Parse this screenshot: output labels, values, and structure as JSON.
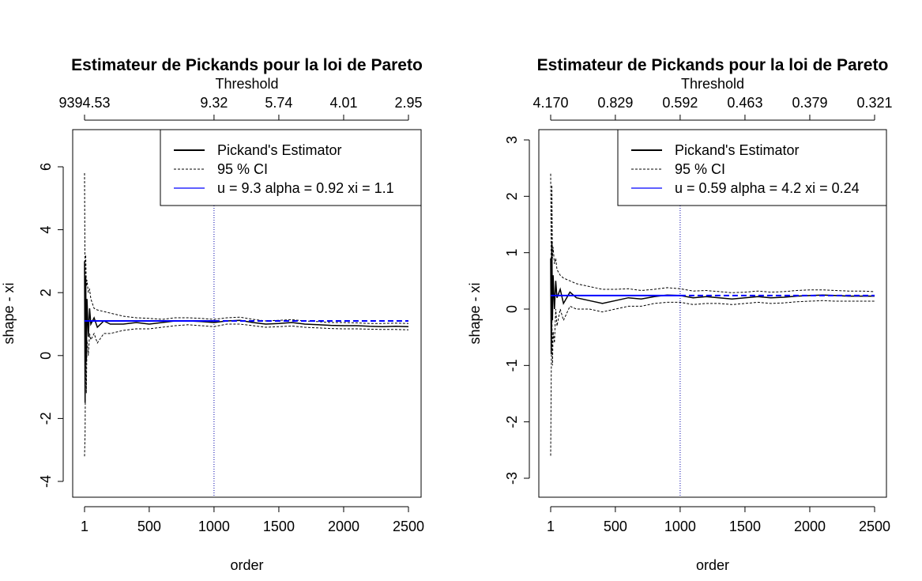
{
  "chart_data": [
    {
      "type": "line",
      "title": "Estimateur de Pickands pour la loi de Pareto",
      "xlabel": "order",
      "ylabel": "shape - xi",
      "top_axis_label": "Threshold",
      "xlim": [
        1,
        2500
      ],
      "ylim": [
        -4,
        7
      ],
      "x_ticks": [
        1,
        500,
        1000,
        1500,
        2000,
        2500
      ],
      "x_tick_labels": [
        "1",
        "500",
        "1000",
        "1500",
        "2000",
        "2500"
      ],
      "y_ticks": [
        -4,
        -2,
        0,
        2,
        4,
        6
      ],
      "y_tick_labels": [
        "-4",
        "-2",
        "0",
        "2",
        "4",
        "6"
      ],
      "top_ticks": [
        1,
        1000,
        1500,
        2000,
        2500
      ],
      "top_tick_labels": [
        "9394.53",
        "9.32",
        "5.74",
        "4.01",
        "2.95"
      ],
      "vline_x": 1000,
      "hline_y": 1.1,
      "legend": {
        "position": "top-right",
        "entries": [
          {
            "label": "Pickand's Estimator",
            "style": "solid",
            "color": "#000000"
          },
          {
            "label": "95 % CI",
            "style": "dashed",
            "color": "#000000"
          },
          {
            "label": "u = 9.3 alpha = 0.92 xi = 1.1",
            "style": "solid",
            "color": "#0000ff"
          }
        ]
      },
      "series": [
        {
          "name": "Pickand's Estimator",
          "x": [
            1,
            5,
            10,
            15,
            20,
            30,
            40,
            50,
            75,
            100,
            150,
            200,
            300,
            400,
            500,
            600,
            700,
            800,
            900,
            1000,
            1100,
            1200,
            1300,
            1400,
            1500,
            1600,
            1700,
            1800,
            1900,
            2000,
            2100,
            2200,
            2300,
            2400,
            2500
          ],
          "y": [
            3.0,
            -1.5,
            2.5,
            -0.2,
            1.8,
            0.6,
            1.5,
            1.0,
            1.2,
            0.9,
            1.1,
            1.0,
            1.0,
            1.05,
            1.0,
            1.05,
            1.1,
            1.1,
            1.08,
            1.05,
            1.1,
            1.12,
            1.05,
            1.0,
            1.02,
            1.05,
            1.0,
            0.98,
            0.96,
            0.95,
            0.95,
            0.93,
            0.92,
            0.93,
            0.92
          ]
        },
        {
          "name": "95 % CI",
          "x": [
            1,
            5,
            10,
            15,
            20,
            30,
            40,
            50,
            75,
            100,
            150,
            200,
            300,
            400,
            500,
            600,
            700,
            800,
            900,
            1000,
            1100,
            1200,
            1300,
            1400,
            1500,
            1600,
            1700,
            1800,
            1900,
            2000,
            2100,
            2200,
            2300,
            2400,
            2500
          ],
          "y": [
            5.8,
            2.0,
            3.2,
            2.2,
            2.4,
            2.0,
            2.1,
            1.8,
            1.5,
            1.45,
            1.4,
            1.35,
            1.25,
            1.2,
            1.18,
            1.15,
            1.2,
            1.2,
            1.18,
            1.15,
            1.2,
            1.22,
            1.15,
            1.1,
            1.12,
            1.14,
            1.1,
            1.08,
            1.05,
            1.05,
            1.04,
            1.02,
            1.02,
            1.03,
            1.02
          ]
        },
        {
          "name": "",
          "x": [
            1,
            5,
            10,
            15,
            20,
            30,
            40,
            50,
            75,
            100,
            150,
            200,
            300,
            400,
            500,
            600,
            700,
            800,
            900,
            1000,
            1100,
            1200,
            1300,
            1400,
            1500,
            1600,
            1700,
            1800,
            1900,
            2000,
            2100,
            2200,
            2300,
            2400,
            2500
          ],
          "y": [
            -3.2,
            -2.5,
            1.0,
            -1.2,
            0.5,
            0.0,
            0.7,
            0.5,
            0.7,
            0.4,
            0.7,
            0.7,
            0.8,
            0.85,
            0.85,
            0.9,
            0.95,
            0.98,
            0.95,
            0.92,
            1.0,
            1.0,
            0.95,
            0.9,
            0.92,
            0.94,
            0.9,
            0.88,
            0.86,
            0.85,
            0.85,
            0.84,
            0.83,
            0.83,
            0.82
          ]
        }
      ]
    },
    {
      "type": "line",
      "title": "Estimateur de Pickands pour la loi de Pareto",
      "xlabel": "order",
      "ylabel": "shape - xi",
      "top_axis_label": "Threshold",
      "xlim": [
        1,
        2500
      ],
      "ylim": [
        -3.3,
        3.1
      ],
      "x_ticks": [
        1,
        500,
        1000,
        1500,
        2000,
        2500
      ],
      "x_tick_labels": [
        "1",
        "500",
        "1000",
        "1500",
        "2000",
        "2500"
      ],
      "y_ticks": [
        -3,
        -2,
        -1,
        0,
        1,
        2,
        3
      ],
      "y_tick_labels": [
        "-3",
        "-2",
        "-1",
        "0",
        "1",
        "2",
        "3"
      ],
      "top_ticks": [
        1,
        500,
        1000,
        1500,
        2000,
        2500
      ],
      "top_tick_labels": [
        "4.170",
        "0.829",
        "0.592",
        "0.463",
        "0.379",
        "0.321"
      ],
      "vline_x": 1000,
      "hline_y": 0.24,
      "legend": {
        "position": "top-right",
        "entries": [
          {
            "label": "Pickand's Estimator",
            "style": "solid",
            "color": "#000000"
          },
          {
            "label": "95 % CI",
            "style": "dashed",
            "color": "#000000"
          },
          {
            "label": "u = 0.59 alpha = 4.2 xi = 0.24",
            "style": "solid",
            "color": "#0000ff"
          }
        ]
      },
      "series": [
        {
          "name": "Pickand's Estimator",
          "x": [
            1,
            5,
            10,
            15,
            20,
            30,
            40,
            50,
            75,
            100,
            150,
            200,
            300,
            400,
            500,
            600,
            700,
            800,
            900,
            1000,
            1100,
            1200,
            1300,
            1400,
            1500,
            1600,
            1700,
            1800,
            1900,
            2000,
            2100,
            2200,
            2300,
            2400,
            2500
          ],
          "y": [
            0.9,
            -0.8,
            1.2,
            -0.2,
            0.6,
            0.0,
            0.5,
            0.2,
            0.35,
            0.1,
            0.3,
            0.2,
            0.15,
            0.1,
            0.15,
            0.2,
            0.18,
            0.22,
            0.25,
            0.24,
            0.2,
            0.22,
            0.2,
            0.18,
            0.2,
            0.22,
            0.2,
            0.21,
            0.23,
            0.24,
            0.25,
            0.24,
            0.23,
            0.23,
            0.23
          ]
        },
        {
          "name": "95 % CI",
          "x": [
            1,
            5,
            10,
            15,
            20,
            30,
            40,
            50,
            75,
            100,
            150,
            200,
            300,
            400,
            500,
            600,
            700,
            800,
            900,
            1000,
            1100,
            1200,
            1300,
            1400,
            1500,
            1600,
            1700,
            1800,
            1900,
            2000,
            2100,
            2200,
            2300,
            2400,
            2500
          ],
          "y": [
            2.4,
            0.8,
            2.2,
            0.9,
            1.1,
            0.8,
            0.9,
            0.7,
            0.6,
            0.55,
            0.5,
            0.45,
            0.4,
            0.35,
            0.35,
            0.36,
            0.33,
            0.35,
            0.38,
            0.36,
            0.32,
            0.33,
            0.31,
            0.29,
            0.3,
            0.32,
            0.3,
            0.31,
            0.33,
            0.34,
            0.34,
            0.33,
            0.32,
            0.32,
            0.31
          ]
        },
        {
          "name": "",
          "x": [
            1,
            5,
            10,
            15,
            20,
            30,
            40,
            50,
            75,
            100,
            150,
            200,
            300,
            400,
            500,
            600,
            700,
            800,
            900,
            1000,
            1100,
            1200,
            1300,
            1400,
            1500,
            1600,
            1700,
            1800,
            1900,
            2000,
            2100,
            2200,
            2300,
            2400,
            2500
          ],
          "y": [
            -2.6,
            -1.2,
            0.0,
            -1.0,
            -0.4,
            -0.6,
            0.0,
            -0.3,
            0.0,
            -0.2,
            0.05,
            0.0,
            0.0,
            -0.05,
            0.0,
            0.05,
            0.05,
            0.1,
            0.12,
            0.12,
            0.08,
            0.1,
            0.1,
            0.08,
            0.1,
            0.12,
            0.1,
            0.11,
            0.13,
            0.14,
            0.15,
            0.14,
            0.14,
            0.14,
            0.14
          ]
        }
      ]
    }
  ]
}
